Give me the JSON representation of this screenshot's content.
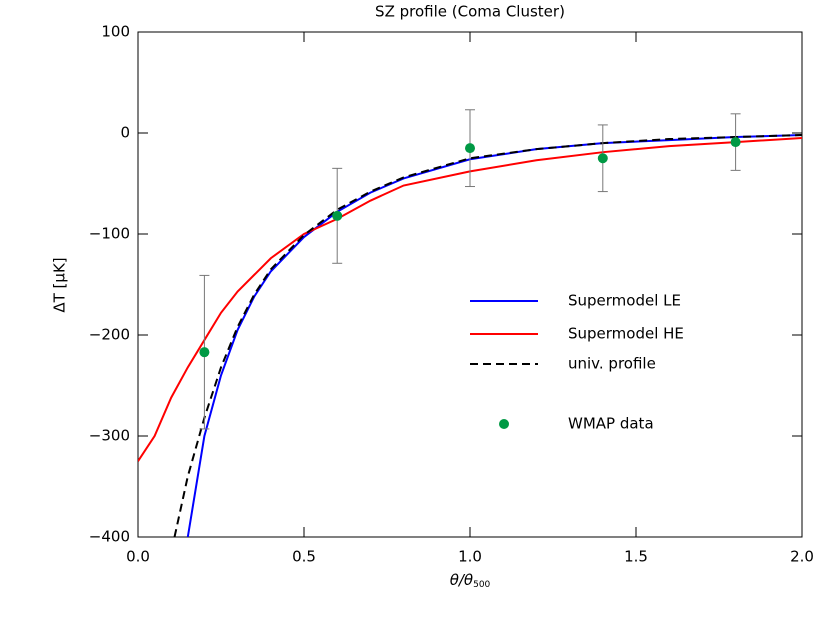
{
  "chart_data": {
    "type": "line",
    "title": "SZ profile (Coma Cluster)",
    "x_label": "θ/θ",
    "x_label_sub": "500",
    "y_label": "ΔT [μK]",
    "xlim": [
      0,
      2
    ],
    "ylim": [
      -400,
      100
    ],
    "xticks": [
      {
        "value": 0,
        "label": "0.0"
      },
      0.5,
      {
        "value": 1,
        "label": "1.0"
      },
      1.5,
      {
        "value": 2,
        "label": "2.0"
      }
    ],
    "yticks": [
      -400,
      -300,
      -200,
      -100,
      0,
      100
    ],
    "series": [
      {
        "name": "Supermodel LE",
        "color": "#0000ff",
        "dash": false,
        "x": [
          0.15,
          0.2,
          0.25,
          0.3,
          0.35,
          0.4,
          0.5,
          0.6,
          0.7,
          0.8,
          1.0,
          1.2,
          1.4,
          1.6,
          1.8,
          2.0
        ],
        "values": [
          -400,
          -300,
          -240,
          -195,
          -162,
          -137,
          -103,
          -78,
          -59,
          -45,
          -26,
          -16,
          -10,
          -7,
          -4,
          -2
        ]
      },
      {
        "name": "Supermodel HE",
        "color": "#ff0000",
        "dash": false,
        "x": [
          0,
          0.05,
          0.1,
          0.15,
          0.2,
          0.25,
          0.3,
          0.4,
          0.5,
          0.6,
          0.7,
          0.8,
          1.0,
          1.2,
          1.4,
          1.6,
          1.8,
          2.0
        ],
        "values": [
          -325,
          -300,
          -262,
          -232,
          -205,
          -178,
          -157,
          -124,
          -100,
          -85,
          -67,
          -52,
          -38,
          -27,
          -19,
          -13,
          -9,
          -5
        ]
      },
      {
        "name": "univ. profile",
        "color": "#000000",
        "dash": true,
        "x": [
          0.11,
          0.15,
          0.2,
          0.25,
          0.3,
          0.35,
          0.4,
          0.5,
          0.6,
          0.7,
          0.8,
          1.0,
          1.2,
          1.4,
          1.6,
          1.8,
          2.0
        ],
        "values": [
          -400,
          -340,
          -282,
          -232,
          -192,
          -160,
          -135,
          -101,
          -76,
          -58,
          -44,
          -25,
          -16,
          -10,
          -6,
          -4,
          -2
        ]
      }
    ],
    "points": {
      "name": "WMAP data",
      "color": "#009944",
      "x": [
        0.2,
        0.6,
        1.0,
        1.4,
        1.8
      ],
      "values": [
        -217,
        -82,
        -15,
        -25,
        -9
      ],
      "errors": [
        76,
        47,
        38,
        33,
        28
      ]
    }
  }
}
